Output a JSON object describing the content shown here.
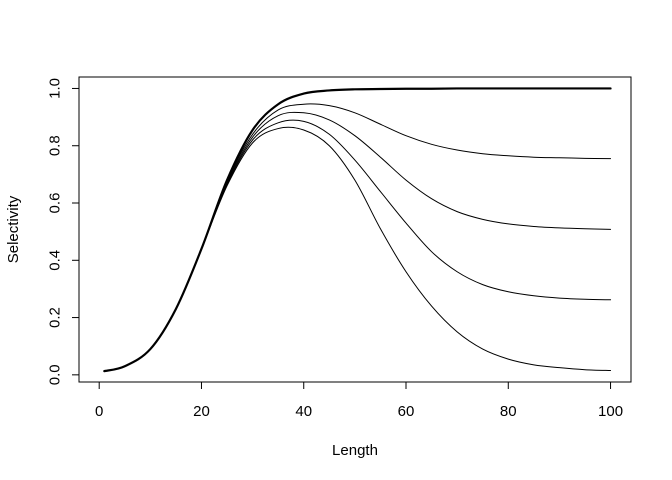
{
  "chart_data": {
    "type": "line",
    "title": "",
    "xlabel": "Length",
    "ylabel": "Selectivity",
    "xlim": [
      -3.95,
      104
    ],
    "ylim": [
      -0.025,
      1.04
    ],
    "xticks": [
      0,
      20,
      40,
      60,
      80,
      100
    ],
    "yticks": [
      0.0,
      0.2,
      0.4,
      0.6,
      0.8,
      1.0
    ],
    "xtick_labels": [
      "0",
      "20",
      "40",
      "60",
      "80",
      "100"
    ],
    "ytick_labels": [
      "0.0",
      "0.2",
      "0.4",
      "0.6",
      "0.8",
      "1.0"
    ],
    "grid": false,
    "legend": "none",
    "line_color": "#000000",
    "series": [
      {
        "x": [
          1,
          5,
          10,
          15,
          20,
          25,
          30,
          35,
          40,
          45,
          50,
          55,
          60,
          65,
          70,
          75,
          80,
          85,
          90,
          95,
          100
        ],
        "values": [
          0.013,
          0.03,
          0.09,
          0.23,
          0.44,
          0.68,
          0.855,
          0.945,
          0.982,
          0.993,
          0.997,
          0.998,
          0.999,
          0.999,
          1.0,
          1.0,
          1.0,
          1.0,
          1.0,
          1.0,
          1.0
        ],
        "emphasis": true
      },
      {
        "x": [
          1,
          5,
          10,
          15,
          20,
          25,
          30,
          35,
          40,
          45,
          50,
          55,
          60,
          65,
          70,
          75,
          80,
          85,
          90,
          95,
          100
        ],
        "values": [
          0.013,
          0.03,
          0.09,
          0.23,
          0.44,
          0.675,
          0.84,
          0.925,
          0.945,
          0.94,
          0.915,
          0.875,
          0.835,
          0.805,
          0.785,
          0.772,
          0.765,
          0.76,
          0.758,
          0.756,
          0.755
        ]
      },
      {
        "x": [
          1,
          5,
          10,
          15,
          20,
          25,
          30,
          35,
          40,
          45,
          50,
          55,
          60,
          65,
          70,
          75,
          80,
          85,
          90,
          95,
          100
        ],
        "values": [
          0.013,
          0.03,
          0.09,
          0.23,
          0.44,
          0.67,
          0.83,
          0.905,
          0.915,
          0.89,
          0.835,
          0.76,
          0.68,
          0.615,
          0.57,
          0.543,
          0.527,
          0.518,
          0.513,
          0.51,
          0.508
        ]
      },
      {
        "x": [
          1,
          5,
          10,
          15,
          20,
          25,
          30,
          35,
          40,
          45,
          50,
          55,
          60,
          65,
          70,
          75,
          80,
          85,
          90,
          95,
          100
        ],
        "values": [
          0.013,
          0.03,
          0.09,
          0.23,
          0.44,
          0.665,
          0.82,
          0.88,
          0.885,
          0.84,
          0.75,
          0.64,
          0.53,
          0.43,
          0.36,
          0.315,
          0.29,
          0.276,
          0.268,
          0.264,
          0.262
        ]
      },
      {
        "x": [
          1,
          5,
          10,
          15,
          20,
          25,
          30,
          35,
          40,
          45,
          50,
          55,
          60,
          65,
          70,
          75,
          80,
          85,
          90,
          95,
          100
        ],
        "values": [
          0.013,
          0.03,
          0.09,
          0.23,
          0.44,
          0.66,
          0.81,
          0.86,
          0.855,
          0.8,
          0.68,
          0.51,
          0.36,
          0.24,
          0.15,
          0.09,
          0.055,
          0.035,
          0.025,
          0.018,
          0.015
        ]
      }
    ]
  }
}
